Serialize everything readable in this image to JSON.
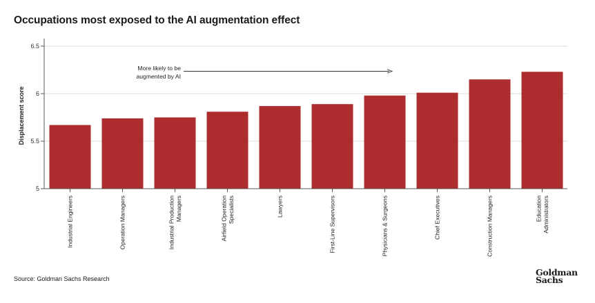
{
  "chart_data": {
    "type": "bar",
    "title": "Occupations most exposed to the AI augmentation effect",
    "ylabel": "Displacement score",
    "xlabel": "",
    "ylim": [
      5,
      6.5
    ],
    "yticks": [
      5,
      5.5,
      6,
      6.5
    ],
    "ytick_labels": [
      "5",
      "5.5",
      "6",
      "6.5"
    ],
    "grid": true,
    "bar_color": "#ad2d2f",
    "categories": [
      [
        "Industrial Engineers"
      ],
      [
        "Operation Managers"
      ],
      [
        "Industrial Production",
        "Managers"
      ],
      [
        "Airfield Operation",
        "Specialists"
      ],
      [
        "Lawyers"
      ],
      [
        "First-Line Supervisors"
      ],
      [
        "Physicians & Surgeons"
      ],
      [
        "Chief Executives"
      ],
      [
        "Construction Managers"
      ],
      [
        "Education",
        "Administrators"
      ]
    ],
    "values": [
      5.67,
      5.74,
      5.75,
      5.81,
      5.87,
      5.89,
      5.98,
      6.01,
      6.15,
      6.23
    ],
    "annotation": {
      "lines": [
        "More likely to be",
        "augmented by AI"
      ]
    }
  },
  "source": "Source: Goldman Sachs Research",
  "brand": {
    "line1": "Goldman",
    "line2": "Sachs"
  }
}
